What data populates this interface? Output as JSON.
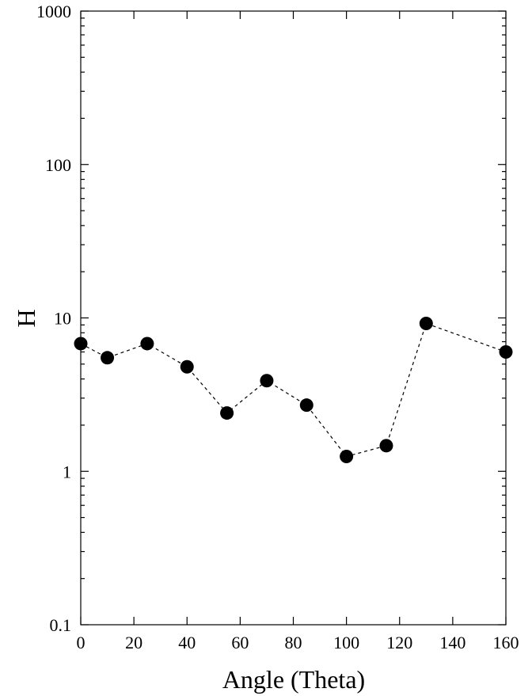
{
  "chart_data": {
    "type": "scatter",
    "title": "",
    "xlabel": "Angle (Theta)",
    "ylabel": "H",
    "xlim": [
      0,
      160
    ],
    "ylim": [
      0.1,
      1000
    ],
    "y_scale": "log",
    "grid": false,
    "legend": "none",
    "x_ticks": [
      0,
      20,
      40,
      60,
      80,
      100,
      120,
      140,
      160
    ],
    "x_tick_labels": [
      "0",
      "20",
      "40",
      "60",
      "80",
      "100",
      "120",
      "140",
      "160"
    ],
    "y_ticks": [
      0.1,
      1,
      10,
      100,
      1000
    ],
    "y_tick_labels": [
      "0.1",
      "1",
      "10",
      "100",
      "1000"
    ],
    "series": [
      {
        "line_style": "dashed",
        "marker": "filled-circle",
        "color": "#000000",
        "x": [
          0,
          10,
          25,
          40,
          55,
          70,
          85,
          100,
          115,
          130,
          160
        ],
        "y": [
          6.8,
          5.5,
          6.8,
          4.8,
          2.4,
          3.9,
          2.7,
          1.25,
          1.47,
          9.2,
          6.0
        ]
      }
    ]
  }
}
